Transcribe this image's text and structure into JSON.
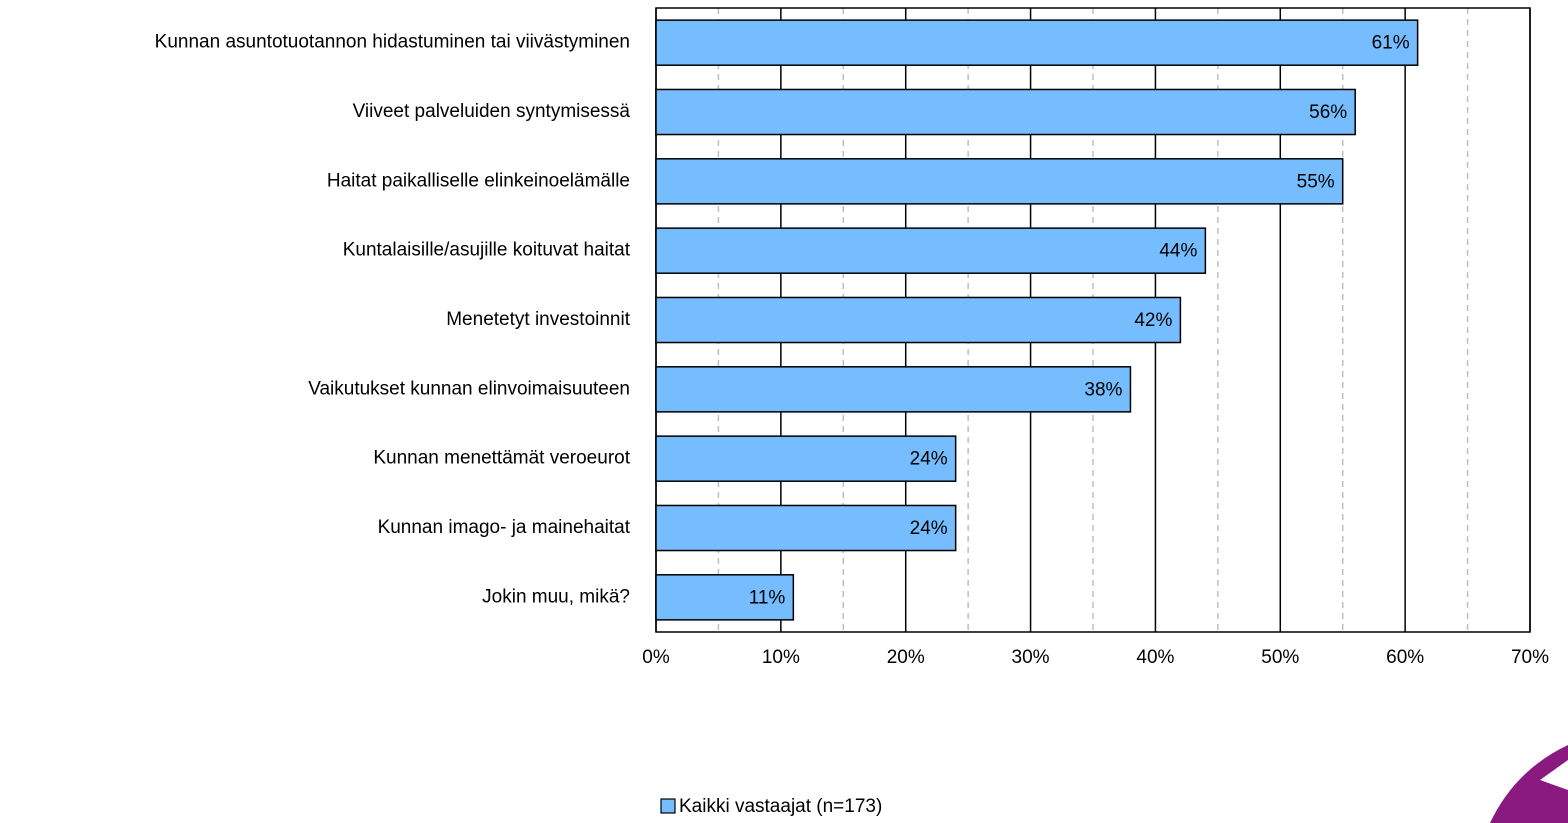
{
  "chart_data": {
    "type": "bar",
    "orientation": "horizontal",
    "categories": [
      "Kunnan asuntotuotannon hidastuminen tai viivästyminen",
      "Viiveet palveluiden syntymisessä",
      "Haitat paikalliselle elinkeinoelämälle",
      "Kuntalaisille/asujille koituvat haitat",
      "Menetetyt investoinnit",
      "Vaikutukset kunnan elinvoimaisuuteen",
      "Kunnan menettämät veroeurot",
      "Kunnan imago- ja mainehaitat",
      "Jokin muu, mikä?"
    ],
    "series": [
      {
        "name": "Kaikki vastaajat (n=173)",
        "color": "#75bdff",
        "values": [
          61,
          56,
          55,
          44,
          42,
          38,
          24,
          24,
          11
        ],
        "value_labels": [
          "61%",
          "56%",
          "55%",
          "44%",
          "42%",
          "38%",
          "24%",
          "24%",
          "11%"
        ]
      }
    ],
    "xlim": [
      0,
      70
    ],
    "xticks": [
      {
        "value": 0,
        "label": "0%"
      },
      {
        "value": 10,
        "label": "10%"
      },
      {
        "value": 20,
        "label": "20%"
      },
      {
        "value": 30,
        "label": "30%"
      },
      {
        "value": 40,
        "label": "40%"
      },
      {
        "value": 50,
        "label": "50%"
      },
      {
        "value": 60,
        "label": "60%"
      },
      {
        "value": 70,
        "label": "70%"
      }
    ],
    "xminorticks": [
      5,
      15,
      25,
      35,
      45,
      55,
      65
    ],
    "grid": true,
    "legend": "bottom"
  }
}
